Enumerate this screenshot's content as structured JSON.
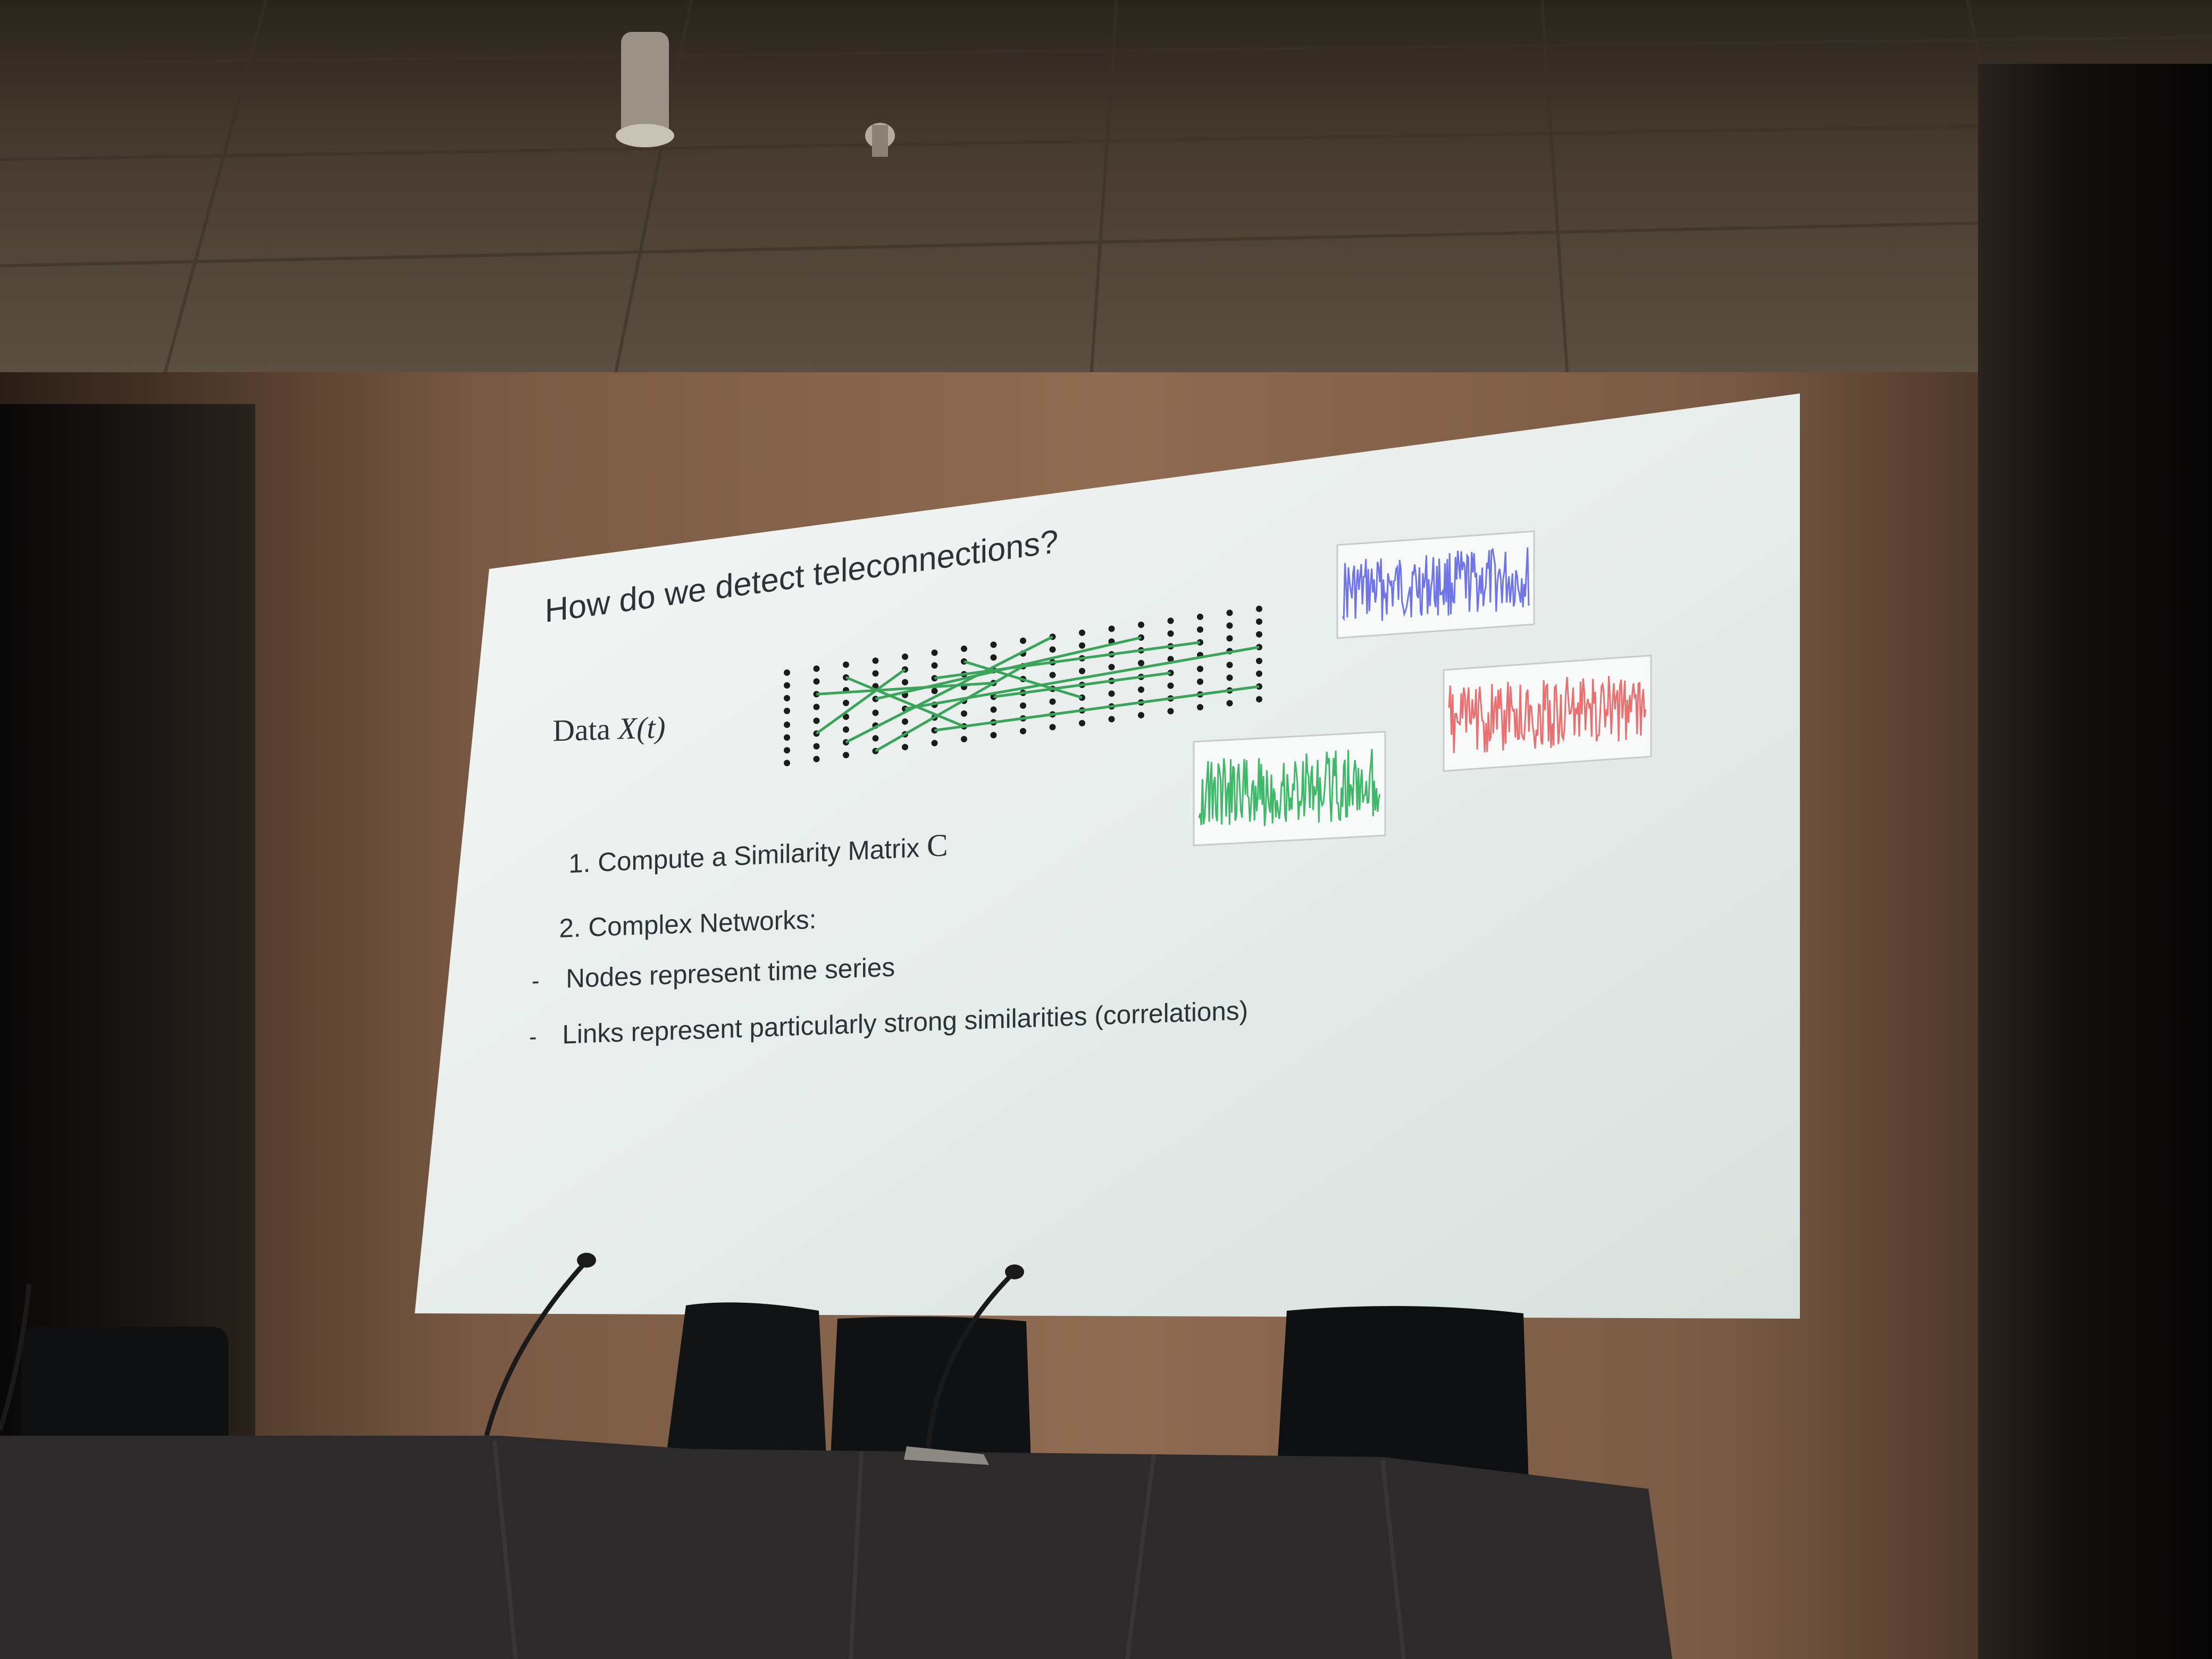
{
  "slide": {
    "title": "How do we detect teleconnections?",
    "data_label": "Data ",
    "data_symbol": "X(t)",
    "step1_text": "1. Compute a Similarity Matrix ",
    "step1_symbol": "C",
    "step2_text": "2. Complex Networks:",
    "bullets": [
      {
        "marker": "-",
        "text": "Nodes represent time series"
      },
      {
        "marker": "-",
        "text": "Links represent particularly strong similarities (correlations)"
      }
    ],
    "plot_colors": {
      "blue": "#6f74e6",
      "red": "#e87070",
      "green": "#3fb86a",
      "links": "#3aa55a",
      "nodes": "#1c1c1c"
    }
  }
}
